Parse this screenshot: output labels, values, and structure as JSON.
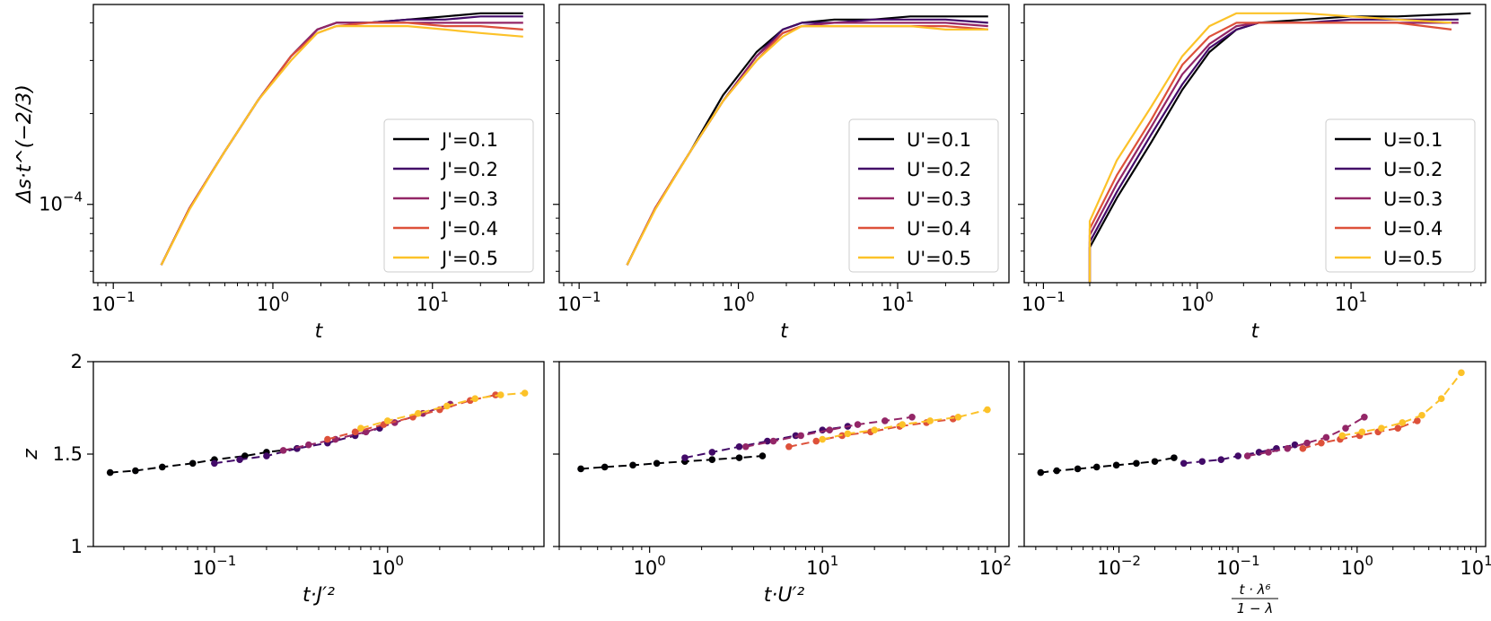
{
  "chart_data": [
    {
      "type": "line",
      "scale": {
        "x": "log",
        "y": "log"
      },
      "title": "",
      "xlabel": "t",
      "ylabel": "Δs·t^(−2/3)",
      "xlim": [
        0.075,
        50
      ],
      "ylim": [
        5.5e-05,
        0.00046
      ],
      "xticks": [
        {
          "value": 0.1,
          "base": "10",
          "exp": "−1"
        },
        {
          "value": 1,
          "base": "10",
          "exp": "0"
        },
        {
          "value": 10,
          "base": "10",
          "exp": "1"
        }
      ],
      "yticks": [
        {
          "value": 0.0001,
          "base": "10",
          "exp": "−4"
        }
      ],
      "legend": "lower-right",
      "series": [
        {
          "name": "J'=0.1",
          "color": "#000004",
          "x": [
            0.2,
            0.3,
            0.5,
            0.8,
            1.3,
            1.9,
            2.5,
            4,
            7,
            12,
            20,
            37
          ],
          "y": [
            6.3e-05,
            9.7e-05,
            0.00015,
            0.00022,
            0.00031,
            0.00038,
            0.0004,
            0.0004,
            0.00041,
            0.00042,
            0.00043,
            0.00043
          ]
        },
        {
          "name": "J'=0.2",
          "color": "#420a68",
          "x": [
            0.2,
            0.3,
            0.5,
            0.8,
            1.3,
            1.9,
            2.5,
            4,
            7,
            12,
            20,
            37
          ],
          "y": [
            6.3e-05,
            9.7e-05,
            0.00015,
            0.00022,
            0.00031,
            0.00038,
            0.0004,
            0.0004,
            0.00041,
            0.00041,
            0.00042,
            0.00042
          ]
        },
        {
          "name": "J'=0.3",
          "color": "#932667",
          "x": [
            0.2,
            0.3,
            0.5,
            0.8,
            1.3,
            1.9,
            2.5,
            4,
            7,
            12,
            20,
            37
          ],
          "y": [
            6.3e-05,
            9.7e-05,
            0.00015,
            0.00022,
            0.00031,
            0.00038,
            0.0004,
            0.0004,
            0.0004,
            0.0004,
            0.0004,
            0.0004
          ]
        },
        {
          "name": "J'=0.4",
          "color": "#dd513a",
          "x": [
            0.2,
            0.3,
            0.5,
            0.8,
            1.3,
            1.9,
            2.5,
            4,
            7,
            12,
            20,
            37
          ],
          "y": [
            6.3e-05,
            9.7e-05,
            0.00015,
            0.00022,
            0.00031,
            0.00037,
            0.00039,
            0.0004,
            0.0004,
            0.00039,
            0.00039,
            0.00038
          ]
        },
        {
          "name": "J'=0.5",
          "color": "#fcc229",
          "x": [
            0.2,
            0.3,
            0.5,
            0.8,
            1.3,
            1.9,
            2.5,
            4,
            7,
            12,
            20,
            37
          ],
          "y": [
            6.3e-05,
            9.6e-05,
            0.00015,
            0.00022,
            0.0003,
            0.00037,
            0.00039,
            0.00039,
            0.00039,
            0.00038,
            0.00037,
            0.00036
          ]
        }
      ]
    },
    {
      "type": "line",
      "scale": {
        "x": "log",
        "y": "log"
      },
      "title": "",
      "xlabel": "t",
      "ylabel": "",
      "xlim": [
        0.075,
        50
      ],
      "ylim": [
        5.5e-05,
        0.00046
      ],
      "xticks": [
        {
          "value": 0.1,
          "base": "10",
          "exp": "−1"
        },
        {
          "value": 1,
          "base": "10",
          "exp": "0"
        },
        {
          "value": 10,
          "base": "10",
          "exp": "1"
        }
      ],
      "yticks": [
        {
          "value": 0.0001,
          "base": "",
          "exp": ""
        }
      ],
      "legend": "lower-right",
      "series": [
        {
          "name": "U'=0.1",
          "color": "#000004",
          "x": [
            0.2,
            0.3,
            0.5,
            0.8,
            1.3,
            1.9,
            2.5,
            4,
            7,
            12,
            20,
            37
          ],
          "y": [
            6.3e-05,
            9.7e-05,
            0.00015,
            0.00023,
            0.00032,
            0.00038,
            0.0004,
            0.00041,
            0.00041,
            0.00042,
            0.00042,
            0.00042
          ]
        },
        {
          "name": "U'=0.2",
          "color": "#420a68",
          "x": [
            0.2,
            0.3,
            0.5,
            0.8,
            1.3,
            1.9,
            2.5,
            4,
            7,
            12,
            20,
            37
          ],
          "y": [
            6.3e-05,
            9.7e-05,
            0.00015,
            0.00022,
            0.00031,
            0.00038,
            0.0004,
            0.0004,
            0.00041,
            0.00041,
            0.00041,
            0.0004
          ]
        },
        {
          "name": "U'=0.3",
          "color": "#932667",
          "x": [
            0.2,
            0.3,
            0.5,
            0.8,
            1.3,
            1.9,
            2.5,
            4,
            7,
            12,
            20,
            37
          ],
          "y": [
            6.3e-05,
            9.7e-05,
            0.00015,
            0.00022,
            0.00031,
            0.00037,
            0.00039,
            0.0004,
            0.0004,
            0.0004,
            0.0004,
            0.00039
          ]
        },
        {
          "name": "U'=0.4",
          "color": "#dd513a",
          "x": [
            0.2,
            0.3,
            0.5,
            0.8,
            1.3,
            1.9,
            2.5,
            4,
            7,
            12,
            20,
            37
          ],
          "y": [
            6.3e-05,
            9.7e-05,
            0.00015,
            0.00022,
            0.0003,
            0.00037,
            0.00039,
            0.00039,
            0.00039,
            0.00039,
            0.00039,
            0.00038
          ]
        },
        {
          "name": "U'=0.5",
          "color": "#fcc229",
          "x": [
            0.2,
            0.3,
            0.5,
            0.8,
            1.3,
            1.9,
            2.5,
            4,
            7,
            12,
            20,
            37
          ],
          "y": [
            6.3e-05,
            9.6e-05,
            0.00015,
            0.00022,
            0.0003,
            0.00036,
            0.00039,
            0.00039,
            0.00039,
            0.00039,
            0.00038,
            0.00038
          ]
        }
      ]
    },
    {
      "type": "line",
      "scale": {
        "x": "log",
        "y": "log"
      },
      "title": "",
      "xlabel": "t",
      "ylabel": "",
      "xlim": [
        0.075,
        75
      ],
      "ylim": [
        5.5e-05,
        0.00046
      ],
      "xticks": [
        {
          "value": 0.1,
          "base": "10",
          "exp": "−1"
        },
        {
          "value": 1,
          "base": "10",
          "exp": "0"
        },
        {
          "value": 10,
          "base": "10",
          "exp": "1"
        }
      ],
      "yticks": [
        {
          "value": 0.0001,
          "base": "",
          "exp": ""
        }
      ],
      "legend": "lower-right",
      "series": [
        {
          "name": "U=0.1",
          "color": "#000004",
          "x": [
            0.2,
            0.2,
            0.3,
            0.5,
            0.8,
            1.2,
            1.8,
            2.5,
            5,
            10,
            20,
            60
          ],
          "y": [
            5.5e-05,
            7.2e-05,
            0.000105,
            0.00016,
            0.00024,
            0.00032,
            0.00038,
            0.0004,
            0.00041,
            0.00042,
            0.00042,
            0.00043
          ]
        },
        {
          "name": "U=0.2",
          "color": "#420a68",
          "x": [
            0.2,
            0.2,
            0.3,
            0.5,
            0.8,
            1.2,
            1.8,
            2.5,
            5,
            10,
            20,
            50
          ],
          "y": [
            5.5e-05,
            7.5e-05,
            0.00011,
            0.00017,
            0.00025,
            0.00033,
            0.00038,
            0.0004,
            0.0004,
            0.00041,
            0.00041,
            0.00041
          ]
        },
        {
          "name": "U=0.3",
          "color": "#932667",
          "x": [
            0.2,
            0.2,
            0.3,
            0.5,
            0.8,
            1.2,
            1.8,
            2.5,
            5,
            10,
            20,
            50
          ],
          "y": [
            5.5e-05,
            7.9e-05,
            0.000117,
            0.00018,
            0.00027,
            0.00034,
            0.00039,
            0.0004,
            0.0004,
            0.0004,
            0.0004,
            0.0004
          ]
        },
        {
          "name": "U=0.4",
          "color": "#dd513a",
          "x": [
            0.2,
            0.2,
            0.3,
            0.5,
            0.8,
            1.2,
            1.8,
            2.5,
            5,
            10,
            20,
            45
          ],
          "y": [
            5.5e-05,
            8.3e-05,
            0.000125,
            0.00019,
            0.00029,
            0.00036,
            0.0004,
            0.0004,
            0.0004,
            0.0004,
            0.0004,
            0.00038
          ]
        },
        {
          "name": "U=0.5",
          "color": "#fcc229",
          "x": [
            0.2,
            0.2,
            0.3,
            0.5,
            0.8,
            1.2,
            1.8,
            2.5,
            5,
            10,
            20,
            45
          ],
          "y": [
            5.5e-05,
            8.8e-05,
            0.00014,
            0.00021,
            0.00031,
            0.00039,
            0.00043,
            0.00043,
            0.00043,
            0.00042,
            0.00041,
            0.0004
          ]
        }
      ]
    },
    {
      "type": "line",
      "markers": true,
      "scale": {
        "x": "log",
        "y": "linear"
      },
      "title": "",
      "xlabel": "t·J′²",
      "ylabel": "z",
      "xlim": [
        0.02,
        8
      ],
      "ylim": [
        1,
        2
      ],
      "xticks": [
        {
          "value": 0.1,
          "base": "10",
          "exp": "−1"
        },
        {
          "value": 1,
          "base": "10",
          "exp": "0"
        }
      ],
      "yticks": [
        {
          "value": 1,
          "label": "1"
        },
        {
          "value": 1.5,
          "label": "1.5"
        },
        {
          "value": 2,
          "label": "2"
        }
      ],
      "series": [
        {
          "name": "0.1",
          "color": "#000004",
          "x": [
            0.025,
            0.035,
            0.05,
            0.075,
            0.1,
            0.15,
            0.2,
            0.3
          ],
          "y": [
            1.4,
            1.41,
            1.43,
            1.45,
            1.47,
            1.49,
            1.51,
            1.53
          ]
        },
        {
          "name": "0.2",
          "color": "#420a68",
          "x": [
            0.1,
            0.14,
            0.2,
            0.3,
            0.45,
            0.65,
            0.9
          ],
          "y": [
            1.45,
            1.47,
            1.49,
            1.53,
            1.56,
            1.6,
            1.64
          ]
        },
        {
          "name": "0.3",
          "color": "#932667",
          "x": [
            0.25,
            0.35,
            0.5,
            0.75,
            1.1,
            1.6,
            2.3
          ],
          "y": [
            1.52,
            1.55,
            1.58,
            1.62,
            1.67,
            1.72,
            1.77
          ]
        },
        {
          "name": "0.4",
          "color": "#dd513a",
          "x": [
            0.45,
            0.65,
            0.95,
            1.4,
            2.0,
            3.0,
            4.2
          ],
          "y": [
            1.58,
            1.62,
            1.66,
            1.7,
            1.74,
            1.79,
            1.82
          ]
        },
        {
          "name": "0.5",
          "color": "#fcc229",
          "x": [
            0.7,
            1.0,
            1.5,
            2.2,
            3.2,
            4.5,
            6.2
          ],
          "y": [
            1.64,
            1.68,
            1.72,
            1.76,
            1.8,
            1.82,
            1.83
          ]
        }
      ]
    },
    {
      "type": "line",
      "markers": true,
      "scale": {
        "x": "log",
        "y": "linear"
      },
      "title": "",
      "xlabel": "t·U′²",
      "ylabel": "",
      "xlim": [
        0.3,
        120
      ],
      "ylim": [
        1,
        2
      ],
      "xticks": [
        {
          "value": 1,
          "base": "10",
          "exp": "0"
        },
        {
          "value": 10,
          "base": "10",
          "exp": "1"
        },
        {
          "value": 100,
          "base": "10",
          "exp": "2"
        }
      ],
      "yticks": [
        {
          "value": 1,
          "label": ""
        },
        {
          "value": 1.5,
          "label": ""
        },
        {
          "value": 2,
          "label": ""
        }
      ],
      "series": [
        {
          "name": "0.1",
          "color": "#000004",
          "x": [
            0.4,
            0.55,
            0.8,
            1.1,
            1.6,
            2.3,
            3.3,
            4.5
          ],
          "y": [
            1.42,
            1.43,
            1.44,
            1.45,
            1.46,
            1.47,
            1.48,
            1.49
          ]
        },
        {
          "name": "0.2",
          "color": "#420a68",
          "x": [
            1.6,
            2.3,
            3.3,
            4.8,
            7,
            10,
            14
          ],
          "y": [
            1.48,
            1.51,
            1.54,
            1.57,
            1.6,
            1.63,
            1.65
          ]
        },
        {
          "name": "0.3",
          "color": "#932667",
          "x": [
            3.6,
            5.2,
            7.5,
            11,
            16,
            23,
            33
          ],
          "y": [
            1.54,
            1.57,
            1.6,
            1.63,
            1.66,
            1.68,
            1.7
          ]
        },
        {
          "name": "0.4",
          "color": "#dd513a",
          "x": [
            6.4,
            9.2,
            13,
            19,
            28,
            40,
            57
          ],
          "y": [
            1.54,
            1.57,
            1.6,
            1.62,
            1.65,
            1.67,
            1.69
          ]
        },
        {
          "name": "0.5",
          "color": "#fcc229",
          "x": [
            10,
            14,
            20,
            29,
            42,
            61,
            90
          ],
          "y": [
            1.58,
            1.61,
            1.63,
            1.66,
            1.68,
            1.7,
            1.74
          ]
        }
      ]
    },
    {
      "type": "line",
      "markers": true,
      "scale": {
        "x": "log",
        "y": "linear"
      },
      "title": "",
      "xlabel": "t·λ⁶/(1−λ)",
      "xlabel_num": "t · λ⁶",
      "xlabel_den": "1 − λ",
      "ylabel": "",
      "xlim": [
        0.0016,
        12
      ],
      "ylim": [
        1,
        2
      ],
      "xticks": [
        {
          "value": 0.01,
          "base": "10",
          "exp": "−2"
        },
        {
          "value": 0.1,
          "base": "10",
          "exp": "−1"
        },
        {
          "value": 1,
          "base": "10",
          "exp": "0"
        },
        {
          "value": 10,
          "base": "10",
          "exp": "1"
        }
      ],
      "yticks": [
        {
          "value": 1,
          "label": ""
        },
        {
          "value": 1.5,
          "label": ""
        },
        {
          "value": 2,
          "label": ""
        }
      ],
      "series": [
        {
          "name": "0.1",
          "color": "#000004",
          "x": [
            0.0022,
            0.003,
            0.0045,
            0.0065,
            0.0095,
            0.014,
            0.02,
            0.029
          ],
          "y": [
            1.4,
            1.41,
            1.42,
            1.43,
            1.44,
            1.45,
            1.46,
            1.48
          ]
        },
        {
          "name": "0.2",
          "color": "#420a68",
          "x": [
            0.035,
            0.05,
            0.072,
            0.1,
            0.15,
            0.21,
            0.3
          ],
          "y": [
            1.45,
            1.46,
            1.47,
            1.49,
            1.51,
            1.53,
            1.55
          ]
        },
        {
          "name": "0.3",
          "color": "#932667",
          "x": [
            0.12,
            0.18,
            0.26,
            0.38,
            0.55,
            0.8,
            1.15
          ],
          "y": [
            1.49,
            1.51,
            1.53,
            1.56,
            1.59,
            1.64,
            1.7
          ]
        },
        {
          "name": "0.4",
          "color": "#dd513a",
          "x": [
            0.35,
            0.5,
            0.72,
            1.05,
            1.5,
            2.2,
            3.2
          ],
          "y": [
            1.53,
            1.56,
            1.58,
            1.6,
            1.62,
            1.64,
            1.68
          ]
        },
        {
          "name": "0.5",
          "color": "#fcc229",
          "x": [
            0.75,
            1.1,
            1.6,
            2.4,
            3.5,
            5.1,
            7.5
          ],
          "y": [
            1.6,
            1.62,
            1.64,
            1.67,
            1.71,
            1.8,
            1.94
          ]
        }
      ]
    }
  ]
}
